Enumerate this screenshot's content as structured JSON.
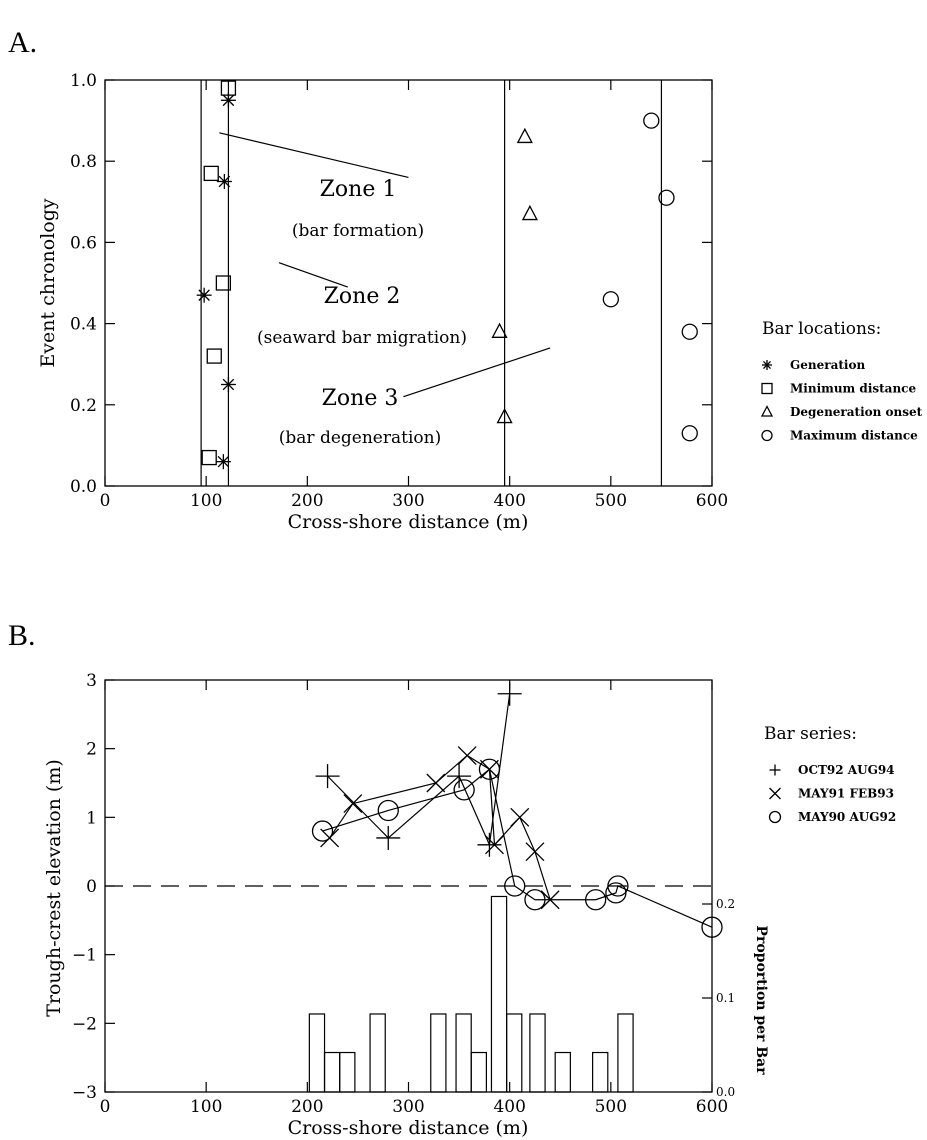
{
  "chart_data": [
    {
      "panel": "A.",
      "type": "scatter",
      "xlabel": "Cross-shore distance (m)",
      "ylabel": "Event chronology",
      "xlim": [
        0,
        600
      ],
      "ylim": [
        0,
        1
      ],
      "xticks": [
        0,
        100,
        200,
        300,
        400,
        500,
        600
      ],
      "xtick_labels": [
        "0",
        "100",
        "200",
        "300",
        "400",
        "500",
        "600"
      ],
      "yticks": [
        0,
        0.2,
        0.4,
        0.6,
        0.8,
        1.0
      ],
      "ytick_labels": [
        "0.0",
        "0.2",
        "0.4",
        "0.6",
        "0.8",
        "1.0"
      ],
      "vertical_lines_x": [
        95,
        122,
        395,
        550
      ],
      "legend_title": "Bar locations:",
      "legend_position": "right",
      "series": [
        {
          "name": "Generation",
          "marker": "asterisk",
          "points": [
            [
              98,
              0.47
            ],
            [
              122,
              0.95
            ],
            [
              118,
              0.75
            ],
            [
              122,
              0.25
            ],
            [
              117,
              0.06
            ]
          ]
        },
        {
          "name": "Minimum distance",
          "marker": "square",
          "points": [
            [
              122,
              0.98
            ],
            [
              105,
              0.77
            ],
            [
              117,
              0.5
            ],
            [
              108,
              0.32
            ],
            [
              103,
              0.07
            ]
          ]
        },
        {
          "name": "Degeneration onset",
          "marker": "triangle",
          "points": [
            [
              415,
              0.86
            ],
            [
              420,
              0.67
            ],
            [
              390,
              0.38
            ],
            [
              395,
              0.17
            ]
          ]
        },
        {
          "name": "Maximum distance",
          "marker": "circle",
          "points": [
            [
              540,
              0.9
            ],
            [
              555,
              0.71
            ],
            [
              500,
              0.46
            ],
            [
              578,
              0.38
            ],
            [
              578,
              0.13
            ]
          ]
        }
      ],
      "annotations": [
        {
          "title": "Zone 1",
          "subtitle": "(bar formation)",
          "pointer": [
            [
              113,
              0.87
            ],
            [
              300,
              0.76
            ]
          ]
        },
        {
          "title": "Zone 2",
          "subtitle": "(seaward bar migration)",
          "pointer": [
            [
              172,
              0.55
            ],
            [
              240,
              0.49
            ]
          ]
        },
        {
          "title": "Zone 3",
          "subtitle": "(bar degeneration)",
          "pointer": [
            [
              440,
              0.34
            ],
            [
              295,
              0.22
            ]
          ]
        }
      ]
    },
    {
      "panel": "B.",
      "type": "line",
      "xlabel": "Cross-shore distance (m)",
      "ylabel": "Trough-crest elevation (m)",
      "right_ylabel": "Proportion per Bar",
      "xlim": [
        0,
        600
      ],
      "ylim": [
        -3,
        3
      ],
      "xticks": [
        0,
        100,
        200,
        300,
        400,
        500,
        600
      ],
      "xtick_labels": [
        "0",
        "100",
        "200",
        "300",
        "400",
        "500",
        "600"
      ],
      "yticks": [
        -3,
        -2,
        -1,
        0,
        1,
        2,
        3
      ],
      "ytick_labels": [
        "−3",
        "−2",
        "−1",
        "0",
        "1",
        "2",
        "3"
      ],
      "right_yticks": [
        0.0,
        0.1,
        0.2
      ],
      "right_ytick_labels": [
        "0.0",
        "0.1",
        "0.2"
      ],
      "right_ylim": [
        0,
        0.25
      ],
      "reference_line_y": 0,
      "legend_title": "Bar series:",
      "legend_position": "right",
      "series": [
        {
          "name": "OCT92 AUG94",
          "marker": "plus",
          "x": [
            220,
            280,
            350,
            380,
            400
          ],
          "y": [
            1.6,
            0.7,
            1.6,
            0.6,
            2.8
          ]
        },
        {
          "name": "MAY91 FEB93",
          "marker": "cross",
          "x": [
            222,
            245,
            327,
            358,
            380,
            385,
            410,
            425,
            440
          ],
          "y": [
            0.7,
            1.2,
            1.5,
            1.9,
            1.7,
            0.6,
            1.0,
            0.5,
            -0.2
          ]
        },
        {
          "name": "MAY90 AUG92",
          "marker": "circle",
          "x": [
            215,
            280,
            355,
            380,
            405,
            425,
            485,
            505,
            507,
            600
          ],
          "y": [
            0.8,
            1.1,
            1.4,
            1.7,
            0.0,
            -0.2,
            -0.2,
            -0.1,
            0.0,
            -0.6
          ]
        }
      ],
      "histogram": {
        "bin_width": 15,
        "bins": [
          {
            "start": 202,
            "value": 0.083
          },
          {
            "start": 217,
            "value": 0.042
          },
          {
            "start": 232,
            "value": 0.042
          },
          {
            "start": 262,
            "value": 0.083
          },
          {
            "start": 322,
            "value": 0.083
          },
          {
            "start": 347,
            "value": 0.083
          },
          {
            "start": 362,
            "value": 0.042
          },
          {
            "start": 382,
            "value": 0.208
          },
          {
            "start": 397,
            "value": 0.083
          },
          {
            "start": 420,
            "value": 0.083
          },
          {
            "start": 445,
            "value": 0.042
          },
          {
            "start": 482,
            "value": 0.042
          },
          {
            "start": 507,
            "value": 0.083
          }
        ]
      }
    }
  ]
}
